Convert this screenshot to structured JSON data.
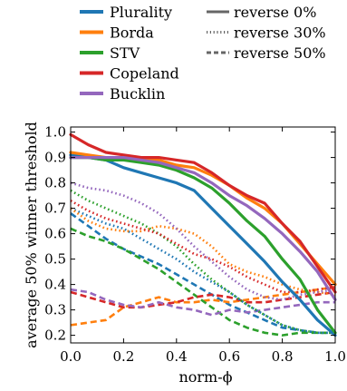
{
  "chart_data": {
    "type": "line",
    "title": "",
    "xlabel": "norm-ϕ",
    "ylabel": "average 50% winner threshold",
    "xlim": [
      0.0,
      1.0
    ],
    "ylim": [
      0.17,
      1.02
    ],
    "x_ticks": [
      "0.0",
      "0.2",
      "0.4",
      "0.6",
      "0.8",
      "1.0"
    ],
    "y_ticks": [
      "0.2",
      "0.3",
      "0.4",
      "0.5",
      "0.6",
      "0.7",
      "0.8",
      "0.9",
      "1.0"
    ],
    "grid": false,
    "legend_position": "top",
    "rules": [
      {
        "name": "Plurality",
        "color": "#1f77b4"
      },
      {
        "name": "Borda",
        "color": "#ff7f0e"
      },
      {
        "name": "STV",
        "color": "#2ca02c"
      },
      {
        "name": "Copeland",
        "color": "#d62728"
      },
      {
        "name": "Bucklin",
        "color": "#9467bd"
      }
    ],
    "reverse_levels": [
      {
        "name": "reverse 0%",
        "dash": "solid"
      },
      {
        "name": "reverse 30%",
        "dash": "dotted"
      },
      {
        "name": "reverse 50%",
        "dash": "dashed"
      }
    ],
    "x": [
      0.0,
      0.0667,
      0.1333,
      0.2,
      0.2667,
      0.3333,
      0.4,
      0.4667,
      0.5333,
      0.6,
      0.6667,
      0.7333,
      0.8,
      0.8667,
      0.9333,
      1.0
    ],
    "series": [
      {
        "rule": "Plurality",
        "reverse": "reverse 0%",
        "values": [
          0.91,
          0.9,
          0.89,
          0.86,
          0.84,
          0.82,
          0.8,
          0.77,
          0.7,
          0.63,
          0.56,
          0.49,
          0.41,
          0.34,
          0.26,
          0.2
        ]
      },
      {
        "rule": "Borda",
        "reverse": "reverse 0%",
        "values": [
          0.92,
          0.91,
          0.9,
          0.9,
          0.9,
          0.89,
          0.87,
          0.86,
          0.83,
          0.79,
          0.74,
          0.7,
          0.64,
          0.56,
          0.48,
          0.4
        ]
      },
      {
        "rule": "STV",
        "reverse": "reverse 0%",
        "values": [
          0.9,
          0.9,
          0.89,
          0.89,
          0.88,
          0.87,
          0.85,
          0.82,
          0.78,
          0.72,
          0.65,
          0.59,
          0.5,
          0.42,
          0.3,
          0.21
        ]
      },
      {
        "rule": "Copeland",
        "reverse": "reverse 0%",
        "values": [
          0.99,
          0.95,
          0.92,
          0.91,
          0.9,
          0.9,
          0.89,
          0.88,
          0.84,
          0.79,
          0.75,
          0.72,
          0.64,
          0.57,
          0.47,
          0.37
        ]
      },
      {
        "rule": "Bucklin",
        "reverse": "reverse 0%",
        "values": [
          0.9,
          0.9,
          0.9,
          0.9,
          0.89,
          0.88,
          0.86,
          0.84,
          0.8,
          0.75,
          0.71,
          0.66,
          0.6,
          0.53,
          0.45,
          0.34
        ]
      },
      {
        "rule": "Plurality",
        "reverse": "reverse 30%",
        "values": [
          0.7,
          0.67,
          0.64,
          0.62,
          0.58,
          0.54,
          0.5,
          0.45,
          0.41,
          0.37,
          0.32,
          0.28,
          0.24,
          0.22,
          0.21,
          0.21
        ]
      },
      {
        "rule": "Borda",
        "reverse": "reverse 30%",
        "values": [
          0.7,
          0.65,
          0.62,
          0.61,
          0.61,
          0.63,
          0.62,
          0.6,
          0.55,
          0.48,
          0.45,
          0.43,
          0.4,
          0.38,
          0.37,
          0.36
        ]
      },
      {
        "rule": "STV",
        "reverse": "reverse 30%",
        "values": [
          0.77,
          0.73,
          0.7,
          0.67,
          0.64,
          0.6,
          0.55,
          0.48,
          0.42,
          0.37,
          0.32,
          0.28,
          0.24,
          0.22,
          0.21,
          0.21
        ]
      },
      {
        "rule": "Copeland",
        "reverse": "reverse 30%",
        "values": [
          0.73,
          0.69,
          0.66,
          0.64,
          0.62,
          0.6,
          0.56,
          0.52,
          0.5,
          0.47,
          0.43,
          0.4,
          0.37,
          0.37,
          0.38,
          0.39
        ]
      },
      {
        "rule": "Bucklin",
        "reverse": "reverse 30%",
        "values": [
          0.8,
          0.78,
          0.77,
          0.75,
          0.72,
          0.68,
          0.62,
          0.55,
          0.49,
          0.43,
          0.38,
          0.35,
          0.34,
          0.36,
          0.37,
          0.38
        ]
      },
      {
        "rule": "Plurality",
        "reverse": "reverse 50%",
        "values": [
          0.68,
          0.63,
          0.58,
          0.54,
          0.51,
          0.48,
          0.44,
          0.4,
          0.36,
          0.32,
          0.29,
          0.26,
          0.23,
          0.22,
          0.21,
          0.21
        ]
      },
      {
        "rule": "Borda",
        "reverse": "reverse 50%",
        "values": [
          0.24,
          0.25,
          0.26,
          0.31,
          0.33,
          0.35,
          0.33,
          0.33,
          0.34,
          0.33,
          0.34,
          0.35,
          0.36,
          0.37,
          0.38,
          0.39
        ]
      },
      {
        "rule": "STV",
        "reverse": "reverse 50%",
        "values": [
          0.62,
          0.59,
          0.57,
          0.54,
          0.5,
          0.46,
          0.41,
          0.36,
          0.31,
          0.26,
          0.23,
          0.21,
          0.2,
          0.21,
          0.21,
          0.21
        ]
      },
      {
        "rule": "Copeland",
        "reverse": "reverse 50%",
        "values": [
          0.37,
          0.35,
          0.33,
          0.31,
          0.31,
          0.32,
          0.33,
          0.35,
          0.36,
          0.35,
          0.33,
          0.33,
          0.34,
          0.35,
          0.36,
          0.37
        ]
      },
      {
        "rule": "Bucklin",
        "reverse": "reverse 50%",
        "values": [
          0.38,
          0.37,
          0.34,
          0.32,
          0.31,
          0.33,
          0.31,
          0.3,
          0.28,
          0.3,
          0.29,
          0.3,
          0.31,
          0.32,
          0.33,
          0.33
        ]
      }
    ]
  }
}
